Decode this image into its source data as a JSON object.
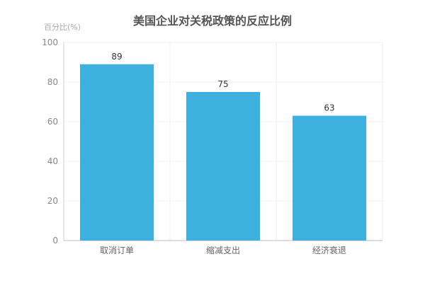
{
  "chart_data": {
    "type": "bar",
    "title": "美国企业对关税政策的反应比例",
    "ylabel": "百分比(%)",
    "xlabel": "",
    "categories": [
      "取消订单",
      "缩减支出",
      "经济衰退"
    ],
    "values": [
      89,
      75,
      63
    ],
    "ylim": [
      0,
      100
    ],
    "yticks": [
      0,
      20,
      40,
      60,
      80,
      100
    ],
    "grid": true,
    "data_labels": true,
    "bar_color": "#3eb0e0"
  }
}
